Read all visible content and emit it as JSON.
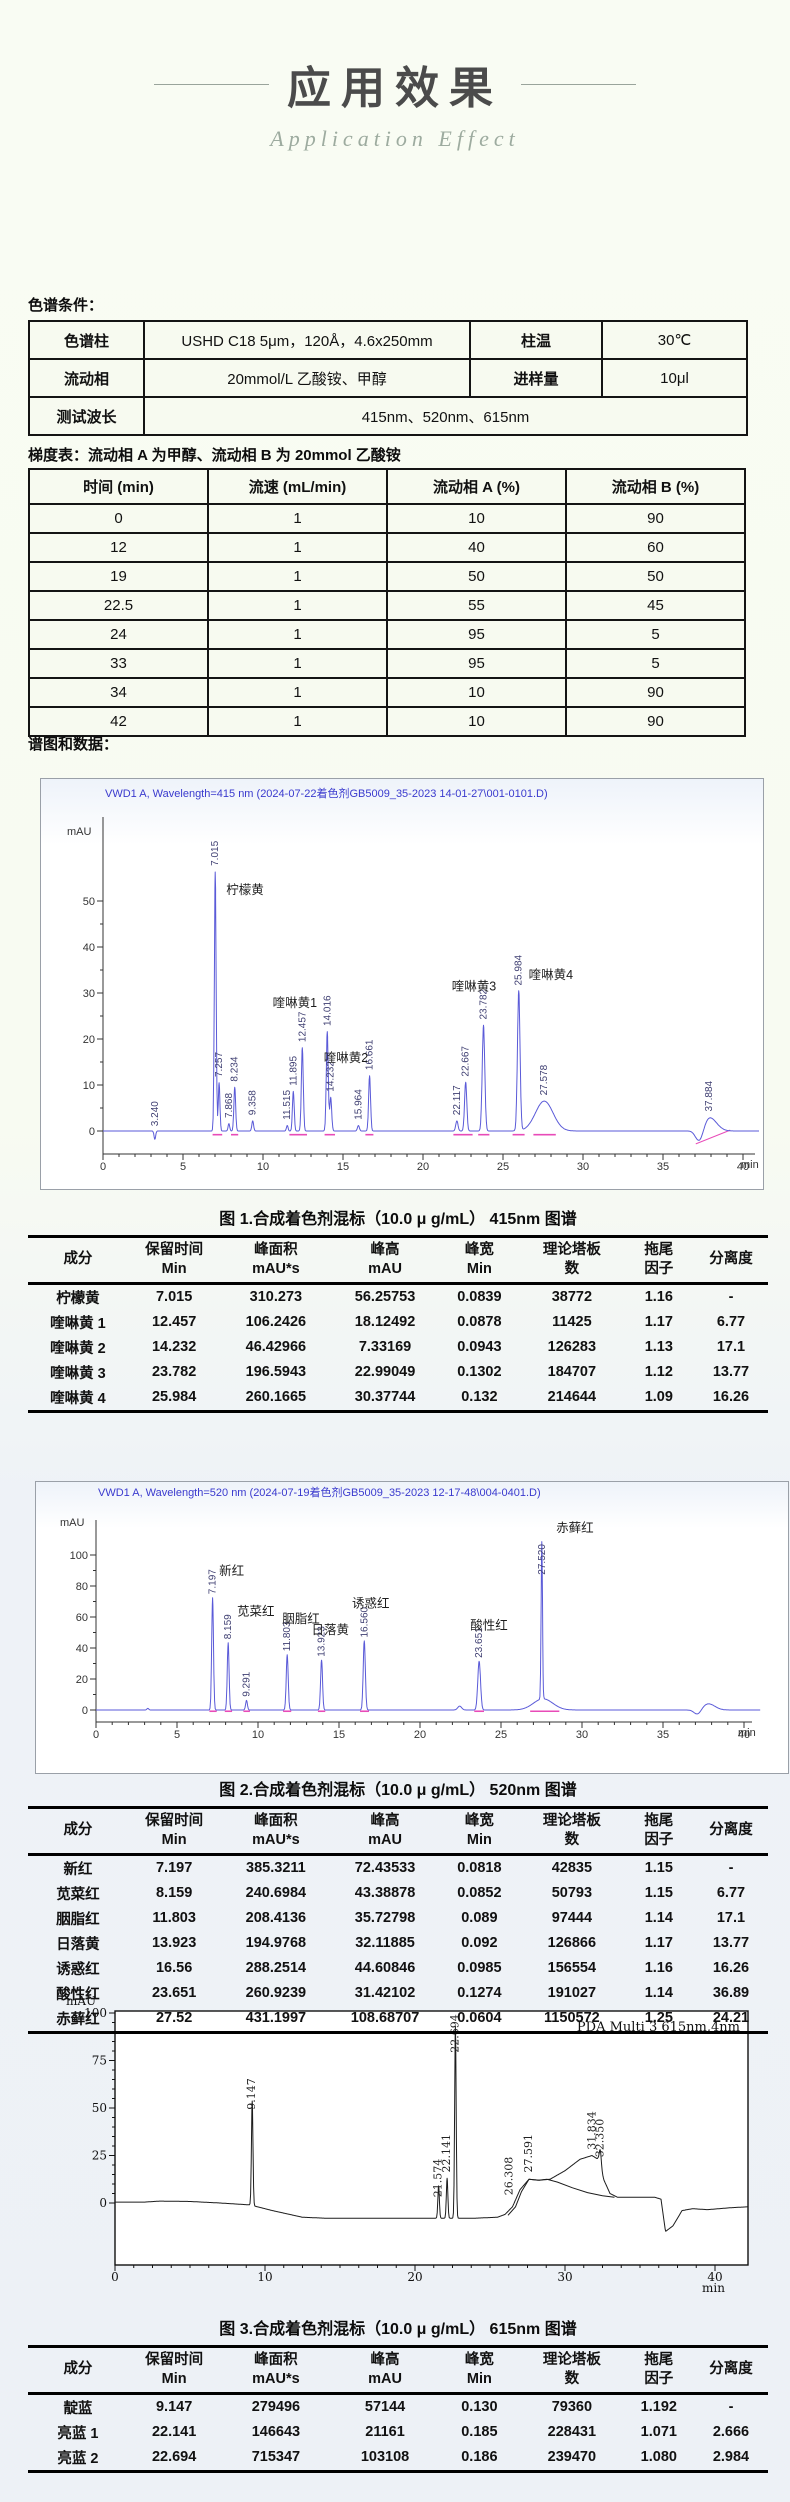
{
  "page": {
    "title": "应用效果",
    "subtitle": "Application Effect",
    "conditions_label": "色谱条件：",
    "gradient_label": "梯度表：流动相 A 为甲醇、流动相 B 为 20mmol 乙酸铵",
    "spectra_label": "谱图和数据：",
    "colors": {
      "accent_blue": "#3a3ace",
      "trace_blue": "#5a5ad8",
      "magenta": "#e84bb8",
      "trace_black": "#1c1c1c"
    }
  },
  "conditions_table": {
    "rows": [
      {
        "k1": "色谱柱",
        "v1": "USHD C18 5μm，120Å，4.6x250mm",
        "k2": "柱温",
        "v2": "30℃"
      },
      {
        "k1": "流动相",
        "v1": "20mmol/L 乙酸铵、甲醇",
        "k2": "进样量",
        "v2": "10μl"
      },
      {
        "k1": "测试波长",
        "v1": "415nm、520nm、615nm"
      }
    ]
  },
  "gradient_table": {
    "headers": [
      "时间 (min)",
      "流速 (mL/min)",
      "流动相 A (%)",
      "流动相 B (%)"
    ],
    "rows": [
      [
        "0",
        "1",
        "10",
        "90"
      ],
      [
        "12",
        "1",
        "40",
        "60"
      ],
      [
        "19",
        "1",
        "50",
        "50"
      ],
      [
        "22.5",
        "1",
        "55",
        "45"
      ],
      [
        "24",
        "1",
        "95",
        "5"
      ],
      [
        "33",
        "1",
        "95",
        "5"
      ],
      [
        "34",
        "1",
        "10",
        "90"
      ],
      [
        "42",
        "1",
        "10",
        "90"
      ]
    ]
  },
  "chart_data": [
    {
      "type": "line",
      "id": "chromatogram-415",
      "title": "VWD1 A, Wavelength=415 nm (2024-07-22着色剂GB5009_35-2023  14-01-27\\001-0101.D)",
      "ylabel": "mAU",
      "xlabel": "min",
      "xlim": [
        0,
        41
      ],
      "ylim": [
        -6,
        64
      ],
      "yticks": [
        0,
        10,
        20,
        30,
        40,
        50
      ],
      "xticks": [
        0,
        5,
        10,
        15,
        20,
        25,
        30,
        35,
        40
      ],
      "peaks": [
        {
          "t": 3.24,
          "h": -1.8,
          "w": 0.05
        },
        {
          "t": 7.015,
          "h": 56.3,
          "w": 0.055
        },
        {
          "t": 7.257,
          "h": 10.5,
          "w": 0.05
        },
        {
          "t": 7.868,
          "h": 1.6,
          "w": 0.05
        },
        {
          "t": 8.234,
          "h": 9.5,
          "w": 0.055
        },
        {
          "t": 9.358,
          "h": 2.2,
          "w": 0.055
        },
        {
          "t": 11.515,
          "h": 1.2,
          "w": 0.05
        },
        {
          "t": 11.895,
          "h": 8.6,
          "w": 0.055
        },
        {
          "t": 12.457,
          "h": 18.1,
          "w": 0.06
        },
        {
          "t": 14.016,
          "h": 21.6,
          "w": 0.06
        },
        {
          "t": 14.232,
          "h": 7.3,
          "w": 0.06
        },
        {
          "t": 15.964,
          "h": 1.2,
          "w": 0.06
        },
        {
          "t": 16.661,
          "h": 12.0,
          "w": 0.06
        },
        {
          "t": 22.117,
          "h": 2.2,
          "w": 0.07
        },
        {
          "t": 22.667,
          "h": 10.6,
          "w": 0.07
        },
        {
          "t": 23.782,
          "h": 23.0,
          "w": 0.08
        },
        {
          "t": 25.984,
          "h": 30.4,
          "w": 0.08
        },
        {
          "t": 27.578,
          "h": 6.5,
          "w": 0.55
        },
        {
          "t": 37.3,
          "h": -3.2,
          "w": 0.25
        },
        {
          "t": 37.884,
          "h": 3.0,
          "w": 0.45
        }
      ],
      "peak_labels": [
        {
          "text": "3.240",
          "t": 3.24,
          "y": 0.6
        },
        {
          "text": "7.015",
          "t": 7.015,
          "y": 57.2
        },
        {
          "text": "7.257",
          "t": 7.257,
          "y": 11.3
        },
        {
          "text": "7.868",
          "t": 7.868,
          "y": 2.4
        },
        {
          "text": "8.234",
          "t": 8.234,
          "y": 10.3
        },
        {
          "text": "9.358",
          "t": 9.358,
          "y": 3.0
        },
        {
          "text": "11.515",
          "t": 11.515,
          "y": 2.0
        },
        {
          "text": "11.895",
          "t": 11.895,
          "y": 9.4
        },
        {
          "text": "12.457",
          "t": 12.457,
          "y": 18.9
        },
        {
          "text": "14.016",
          "t": 14.016,
          "y": 22.4
        },
        {
          "text": "14.232",
          "t": 14.232,
          "y": 8.1
        },
        {
          "text": "15.964",
          "t": 15.964,
          "y": 2.0
        },
        {
          "text": "16.661",
          "t": 16.661,
          "y": 12.8
        },
        {
          "text": "22.117",
          "t": 22.117,
          "y": 3.0
        },
        {
          "text": "22.667",
          "t": 22.667,
          "y": 11.4
        },
        {
          "text": "23.782",
          "t": 23.782,
          "y": 23.8
        },
        {
          "text": "25.984",
          "t": 25.984,
          "y": 31.2
        },
        {
          "text": "27.578",
          "t": 27.578,
          "y": 7.3
        },
        {
          "text": "37.884",
          "t": 37.884,
          "y": 3.8
        }
      ],
      "annotations": [
        {
          "text": "柠檬黄",
          "t": 7.7,
          "y": 51.5
        },
        {
          "text": "喹啉黄1",
          "t": 10.6,
          "y": 27.0
        },
        {
          "text": "喹啉黄2",
          "t": 13.8,
          "y": 15.0
        },
        {
          "text": "喹啉黄3",
          "t": 21.8,
          "y": 30.5
        },
        {
          "text": "喹啉黄4",
          "t": 26.6,
          "y": 33.0
        }
      ],
      "marks": [
        [
          6.85,
          7.45
        ],
        [
          8.0,
          8.45
        ],
        [
          11.65,
          12.75
        ],
        [
          13.85,
          14.5
        ],
        [
          16.4,
          16.9
        ],
        [
          21.9,
          23.1
        ],
        [
          23.45,
          24.15
        ],
        [
          25.6,
          26.35
        ],
        [
          26.9,
          28.3
        ]
      ],
      "extra_segments": [
        {
          "pts": [
            [
              37.05,
              -2.8
            ],
            [
              39.2,
              0.2
            ]
          ]
        }
      ]
    },
    {
      "type": "line",
      "id": "chromatogram-520",
      "title": "VWD1 A, Wavelength=520 nm (2024-07-19着色剂GB5009_35-2023  12-17-48\\004-0401.D)",
      "ylabel": "mAU",
      "xlabel": "min",
      "xlim": [
        0,
        41
      ],
      "ylim": [
        -8,
        120
      ],
      "yticks": [
        0,
        20,
        40,
        60,
        80,
        100
      ],
      "xticks": [
        0,
        5,
        10,
        15,
        20,
        25,
        30,
        35,
        40
      ],
      "peaks": [
        {
          "t": 3.2,
          "h": 1.0,
          "w": 0.06
        },
        {
          "t": 7.197,
          "h": 72.4,
          "w": 0.055
        },
        {
          "t": 8.159,
          "h": 43.4,
          "w": 0.055
        },
        {
          "t": 9.291,
          "h": 6.2,
          "w": 0.055
        },
        {
          "t": 11.803,
          "h": 35.7,
          "w": 0.06
        },
        {
          "t": 13.923,
          "h": 32.1,
          "w": 0.06
        },
        {
          "t": 16.56,
          "h": 44.6,
          "w": 0.065
        },
        {
          "t": 22.45,
          "h": 2.5,
          "w": 0.12
        },
        {
          "t": 23.651,
          "h": 31.4,
          "w": 0.085
        },
        {
          "t": 27.52,
          "h": 101.5,
          "w": 0.042
        },
        {
          "t": 27.6,
          "h": 7.2,
          "w": 0.6
        },
        {
          "t": 37.15,
          "h": -3.5,
          "w": 0.22
        },
        {
          "t": 37.8,
          "h": 4.0,
          "w": 0.4
        }
      ],
      "peak_labels": [
        {
          "text": "7.197",
          "t": 7.197,
          "y": 73.4
        },
        {
          "text": "8.159",
          "t": 8.159,
          "y": 44.3
        },
        {
          "text": "9.291",
          "t": 9.291,
          "y": 7.2
        },
        {
          "text": "11.803",
          "t": 11.803,
          "y": 36.6
        },
        {
          "text": "13.923",
          "t": 13.923,
          "y": 33.0
        },
        {
          "text": "16.560",
          "t": 16.56,
          "y": 45.5
        },
        {
          "text": "23.651",
          "t": 23.651,
          "y": 32.3
        },
        {
          "text": "27.520",
          "t": 27.52,
          "y": 86.0
        }
      ],
      "annotations": [
        {
          "text": "新红",
          "t": 7.6,
          "y": 87.0
        },
        {
          "text": "苋菜红",
          "t": 8.7,
          "y": 61.0
        },
        {
          "text": "胭脂红",
          "t": 11.5,
          "y": 56.0
        },
        {
          "text": "日落黄",
          "t": 13.3,
          "y": 49.0
        },
        {
          "text": "诱惑红",
          "t": 15.8,
          "y": 66.0
        },
        {
          "text": "酸性红",
          "t": 23.1,
          "y": 52.0
        },
        {
          "text": "赤藓红",
          "t": 28.4,
          "y": 115.0
        }
      ],
      "marks": [
        [
          7.0,
          7.45
        ],
        [
          7.95,
          8.4
        ],
        [
          9.1,
          9.5
        ],
        [
          11.55,
          12.05
        ],
        [
          13.7,
          14.15
        ],
        [
          16.3,
          16.85
        ],
        [
          23.35,
          23.95
        ],
        [
          26.8,
          28.6
        ]
      ],
      "extra_segments": []
    },
    {
      "type": "line",
      "id": "chromatogram-615",
      "title": "",
      "right_label": "PDA Multi 3 615nm,4nm",
      "ylabel": "mAU",
      "xlabel": "min",
      "xlim": [
        0,
        42.2
      ],
      "ylim": [
        -30,
        102
      ],
      "yticks": [
        0,
        25,
        50,
        75,
        100
      ],
      "xticks": [
        0,
        10,
        20,
        30,
        40
      ],
      "baseline": [
        [
          0,
          0.5
        ],
        [
          2,
          0.5
        ],
        [
          3,
          1
        ],
        [
          5,
          0.8
        ],
        [
          7,
          0
        ],
        [
          9,
          -1
        ],
        [
          10.5,
          -4
        ],
        [
          12.5,
          -7.5
        ],
        [
          14,
          -8
        ],
        [
          24,
          -8
        ],
        [
          25.5,
          -7.5
        ],
        [
          26,
          -6
        ],
        [
          26.5,
          -2
        ],
        [
          27,
          7
        ],
        [
          27.6,
          12.5
        ],
        [
          28.3,
          12
        ],
        [
          29,
          12.5
        ],
        [
          30,
          17
        ],
        [
          31,
          23
        ],
        [
          31.8,
          25
        ],
        [
          32.2,
          23
        ],
        [
          32.6,
          12
        ],
        [
          33,
          5
        ],
        [
          33.5,
          3
        ],
        [
          36,
          3
        ],
        [
          36.4,
          2
        ],
        [
          36.7,
          -15
        ],
        [
          37.2,
          -12
        ],
        [
          37.8,
          -4
        ],
        [
          38.5,
          -3
        ],
        [
          39.5,
          -3.5
        ],
        [
          41,
          -2.5
        ],
        [
          42.2,
          -2
        ]
      ],
      "peaks": [
        {
          "t": 9.147,
          "h": 55,
          "w": 0.05
        },
        {
          "t": 21.574,
          "h": 17,
          "w": 0.05
        },
        {
          "t": 22.141,
          "h": 21,
          "w": 0.05
        },
        {
          "t": 22.694,
          "h": 101,
          "w": 0.05
        },
        {
          "t": 32.35,
          "h": 9,
          "w": 0.07
        }
      ],
      "peak_labels": [
        {
          "text": "9.147",
          "t": 9.147,
          "y": 48
        },
        {
          "text": "21.574",
          "t": 21.574,
          "y": 2
        },
        {
          "text": "22.141",
          "t": 22.141,
          "y": 15
        },
        {
          "text": "22.694",
          "t": 22.694,
          "y": 78
        },
        {
          "text": "26.308",
          "t": 26.308,
          "y": 3
        },
        {
          "text": "27.591",
          "t": 27.591,
          "y": 15
        },
        {
          "text": "31.834",
          "t": 31.834,
          "y": 27
        },
        {
          "text": "32.350",
          "t": 32.35,
          "y": 23
        }
      ],
      "annotations": [],
      "marks": [],
      "extra_segments": [
        {
          "pts": [
            [
              26.2,
              -6.5
            ],
            [
              26.7,
              -2
            ],
            [
              27.1,
              6
            ],
            [
              27.6,
              12.5
            ],
            [
              28.2,
              12
            ],
            [
              28.8,
              12.5
            ],
            [
              29.5,
              11
            ],
            [
              30.5,
              8
            ],
            [
              31.5,
              5.5
            ],
            [
              32.5,
              3.8
            ],
            [
              33.3,
              3
            ]
          ]
        }
      ]
    }
  ],
  "tables": [
    {
      "caption": "图 1.合成着色剂混标（10.0 μ g/mL）  415nm 图谱",
      "headers": [
        [
          "成分",
          ""
        ],
        [
          "保留时间",
          "Min"
        ],
        [
          "峰面积",
          "mAU*s"
        ],
        [
          "峰高",
          "mAU"
        ],
        [
          "峰宽",
          "Min"
        ],
        [
          "理论塔板",
          "数"
        ],
        [
          "拖尾",
          "因子"
        ],
        [
          "分离度",
          ""
        ]
      ],
      "rows": [
        [
          "柠檬黄",
          "7.015",
          "310.273",
          "56.25753",
          "0.0839",
          "38772",
          "1.16",
          "-"
        ],
        [
          "喹啉黄 1",
          "12.457",
          "106.2426",
          "18.12492",
          "0.0878",
          "11425",
          "1.17",
          "6.77"
        ],
        [
          "喹啉黄 2",
          "14.232",
          "46.42966",
          "7.33169",
          "0.0943",
          "126283",
          "1.13",
          "17.1"
        ],
        [
          "喹啉黄 3",
          "23.782",
          "196.5943",
          "22.99049",
          "0.1302",
          "184707",
          "1.12",
          "13.77"
        ],
        [
          "喹啉黄 4",
          "25.984",
          "260.1665",
          "30.37744",
          "0.132",
          "214644",
          "1.09",
          "16.26"
        ]
      ]
    },
    {
      "caption": "图 2.合成着色剂混标（10.0 μ g/mL）  520nm 图谱",
      "headers": [
        [
          "成分",
          ""
        ],
        [
          "保留时间",
          "Min"
        ],
        [
          "峰面积",
          "mAU*s"
        ],
        [
          "峰高",
          "mAU"
        ],
        [
          "峰宽",
          "Min"
        ],
        [
          "理论塔板",
          "数"
        ],
        [
          "拖尾",
          "因子"
        ],
        [
          "分离度",
          ""
        ]
      ],
      "rows": [
        [
          "新红",
          "7.197",
          "385.3211",
          "72.43533",
          "0.0818",
          "42835",
          "1.15",
          "-"
        ],
        [
          "苋菜红",
          "8.159",
          "240.6984",
          "43.38878",
          "0.0852",
          "50793",
          "1.15",
          "6.77"
        ],
        [
          "胭脂红",
          "11.803",
          "208.4136",
          "35.72798",
          "0.089",
          "97444",
          "1.14",
          "17.1"
        ],
        [
          "日落黄",
          "13.923",
          "194.9768",
          "32.11885",
          "0.092",
          "126866",
          "1.17",
          "13.77"
        ],
        [
          "诱惑红",
          "16.56",
          "288.2514",
          "44.60846",
          "0.0985",
          "156554",
          "1.16",
          "16.26"
        ],
        [
          "酸性红",
          "23.651",
          "260.9239",
          "31.42102",
          "0.1274",
          "191027",
          "1.14",
          "36.89"
        ],
        [
          "赤藓红",
          "27.52",
          "431.1997",
          "108.68707",
          "0.0604",
          "1150572",
          "1.25",
          "24.21"
        ]
      ]
    },
    {
      "caption": "图 3.合成着色剂混标（10.0 μ g/mL）  615nm 图谱",
      "headers": [
        [
          "成分",
          ""
        ],
        [
          "保留时间",
          "Min"
        ],
        [
          "峰面积",
          "mAU*s"
        ],
        [
          "峰高",
          "mAU"
        ],
        [
          "峰宽",
          "Min"
        ],
        [
          "理论塔板",
          "数"
        ],
        [
          "拖尾",
          "因子"
        ],
        [
          "分离度",
          ""
        ]
      ],
      "rows": [
        [
          "靛蓝",
          "9.147",
          "279496",
          "57144",
          "0.130",
          "79360",
          "1.192",
          "-"
        ],
        [
          "亮蓝 1",
          "22.141",
          "146643",
          "21161",
          "0.185",
          "228431",
          "1.071",
          "2.666"
        ],
        [
          "亮蓝 2",
          "22.694",
          "715347",
          "103108",
          "0.186",
          "239470",
          "1.080",
          "2.984"
        ]
      ]
    }
  ]
}
